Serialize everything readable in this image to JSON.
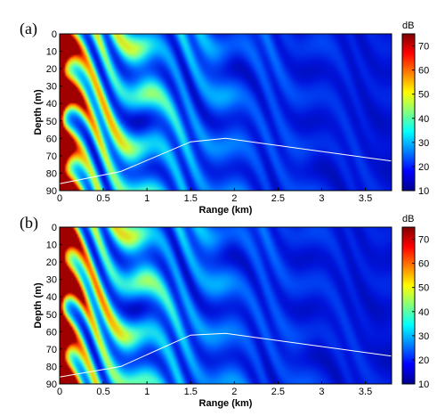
{
  "chart_data": [
    {
      "type": "heatmap",
      "panel_label": "(a)",
      "xlabel": "Range (km)",
      "ylabel": "Depth (m)",
      "xlim": [
        0,
        3.8
      ],
      "ylim": [
        0,
        90
      ],
      "x_ticks": [
        0,
        0.5,
        1,
        1.5,
        2,
        2.5,
        3,
        3.5
      ],
      "x_tick_labels": [
        "0",
        "0.5",
        "1",
        "1.5",
        "2",
        "2.5",
        "3",
        "3.5"
      ],
      "y_ticks": [
        0,
        10,
        20,
        30,
        40,
        50,
        60,
        70,
        80,
        90
      ],
      "y_tick_labels": [
        "0",
        "10",
        "20",
        "30",
        "40",
        "50",
        "60",
        "70",
        "80",
        "90"
      ],
      "y_inverted": true,
      "colorbar": {
        "title": "dB",
        "range": [
          10,
          75
        ],
        "ticks": [
          10,
          20,
          30,
          40,
          50,
          60,
          70
        ],
        "tick_labels": [
          "10",
          "20",
          "30",
          "40",
          "50",
          "60",
          "70"
        ],
        "reversed": true,
        "colors": [
          "#7f0000",
          "#ff0000",
          "#ff8000",
          "#ffff00",
          "#80ff80",
          "#00ffff",
          "#0080ff",
          "#0000ff",
          "#00008f"
        ]
      },
      "bottom_line": {
        "range_km": [
          0,
          0.7,
          1.5,
          1.9,
          3.8
        ],
        "depth_m": [
          86,
          79,
          62,
          60,
          73
        ],
        "color": "#ffffff"
      }
    },
    {
      "type": "heatmap",
      "panel_label": "(b)",
      "xlabel": "Range (km)",
      "ylabel": "Depth (m)",
      "xlim": [
        0,
        3.8
      ],
      "ylim": [
        0,
        90
      ],
      "x_ticks": [
        0,
        0.5,
        1,
        1.5,
        2,
        2.5,
        3,
        3.5
      ],
      "x_tick_labels": [
        "0",
        "0.5",
        "1",
        "1.5",
        "2",
        "2.5",
        "3",
        "3.5"
      ],
      "y_ticks": [
        0,
        10,
        20,
        30,
        40,
        50,
        60,
        70,
        80,
        90
      ],
      "y_tick_labels": [
        "0",
        "10",
        "20",
        "30",
        "40",
        "50",
        "60",
        "70",
        "80",
        "90"
      ],
      "y_inverted": true,
      "colorbar": {
        "title": "dB",
        "range": [
          10,
          75
        ],
        "ticks": [
          10,
          20,
          30,
          40,
          50,
          60,
          70
        ],
        "tick_labels": [
          "10",
          "20",
          "30",
          "40",
          "50",
          "60",
          "70"
        ],
        "reversed": true,
        "colors": [
          "#7f0000",
          "#ff0000",
          "#ff8000",
          "#ffff00",
          "#80ff80",
          "#00ffff",
          "#0080ff",
          "#0000ff",
          "#00008f"
        ]
      },
      "bottom_line": {
        "range_km": [
          0,
          0.7,
          1.5,
          1.9,
          3.8
        ],
        "depth_m": [
          86,
          80,
          62,
          61,
          74
        ],
        "color": "#ffffff"
      }
    }
  ]
}
